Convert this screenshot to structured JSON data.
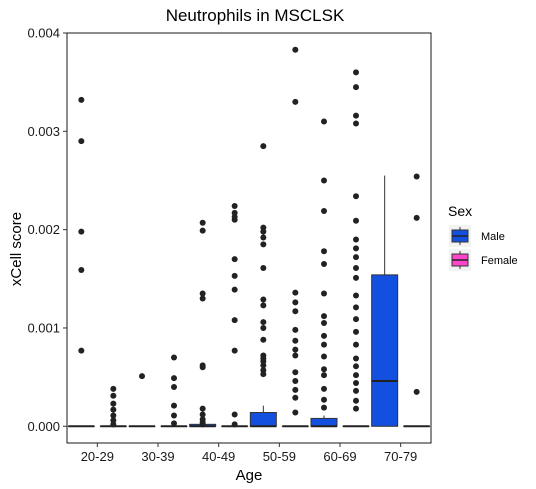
{
  "chart_data": {
    "type": "box",
    "title": "Neutrophils in MSCLSK",
    "xlabel": "Age",
    "ylabel": "xCell score",
    "categories": [
      "20-29",
      "30-39",
      "40-49",
      "50-59",
      "60-69",
      "70-79"
    ],
    "ylim": [
      -0.00017,
      0.004
    ],
    "yticks": [
      0,
      0.001,
      0.002,
      0.003,
      0.004
    ],
    "ytick_labels": [
      "0.000",
      "0.001",
      "0.002",
      "0.003",
      "0.004"
    ],
    "legend": {
      "title": "Sex",
      "position": "right",
      "entries": [
        {
          "name": "Male",
          "color": "#1450e0"
        },
        {
          "name": "Female",
          "color": "#ff44cc"
        }
      ]
    },
    "series": [
      {
        "name": "Male",
        "color": "#1450e0",
        "boxes": [
          {
            "category": "20-29",
            "q1": 0,
            "median": 0,
            "q3": 0,
            "whisker_low": 0,
            "whisker_high": 0,
            "outliers": [
              0.00332,
              0.0029,
              0.00198,
              0.00159,
              0.00077
            ]
          },
          {
            "category": "30-39",
            "q1": 0,
            "median": 0,
            "q3": 0,
            "whisker_low": 0,
            "whisker_high": 0,
            "outliers": [
              0.00051
            ]
          },
          {
            "category": "40-49",
            "q1": 0,
            "median": 0,
            "q3": 2e-05,
            "whisker_low": 0,
            "whisker_high": 4e-05,
            "outliers": [
              0.00207,
              0.00199,
              0.00135,
              0.0013,
              0.00062,
              0.0006,
              0.00018,
              0.00012,
              7e-05,
              4e-05,
              2e-05
            ]
          },
          {
            "category": "50-59",
            "q1": 0,
            "median": 0,
            "q3": 0.00014,
            "whisker_low": 0,
            "whisker_high": 0.00021,
            "outliers": [
              0.00285,
              0.00202,
              0.00198,
              0.00192,
              0.00185,
              0.00161,
              0.00129,
              0.00123,
              0.00106,
              0.001,
              0.00088,
              0.00072,
              0.00069,
              0.00066,
              0.00062,
              0.00057,
              0.00053
            ]
          },
          {
            "category": "60-69",
            "q1": 0,
            "median": 0,
            "q3": 8e-05,
            "whisker_low": 0,
            "whisker_high": 0.00011,
            "outliers": [
              0.0031,
              0.0025,
              0.00219,
              0.00178,
              0.00165,
              0.00135,
              0.00112,
              0.00105,
              0.00092,
              0.00083,
              0.00071,
              0.00058,
              0.00052,
              0.00038,
              0.00027,
              0.00019
            ]
          },
          {
            "category": "70-79",
            "q1": 0,
            "median": 0.00046,
            "q3": 0.00154,
            "whisker_low": 0,
            "whisker_high": 0.00255,
            "outliers": []
          }
        ]
      },
      {
        "name": "Female",
        "color": "#ff44cc",
        "boxes": [
          {
            "category": "20-29",
            "q1": 0,
            "median": 0,
            "q3": 0,
            "whisker_low": 0,
            "whisker_high": 0,
            "outliers": [
              0.00038,
              0.00031,
              0.00023,
              0.00017,
              0.00011,
              6e-05,
              2e-05
            ]
          },
          {
            "category": "30-39",
            "q1": 0,
            "median": 0,
            "q3": 0,
            "whisker_low": 0,
            "whisker_high": 0,
            "outliers": [
              0.0007,
              0.00049,
              0.0004,
              0.00021,
              0.00011,
              3e-05
            ]
          },
          {
            "category": "40-49",
            "q1": 0,
            "median": 0,
            "q3": 0,
            "whisker_low": 0,
            "whisker_high": 0,
            "outliers": [
              0.00224,
              0.00217,
              0.00213,
              0.0021,
              0.0017,
              0.00153,
              0.00139,
              0.00108,
              0.00077,
              0.00012,
              2e-05
            ]
          },
          {
            "category": "50-59",
            "q1": 0,
            "median": 0,
            "q3": 0,
            "whisker_low": 0,
            "whisker_high": 0,
            "outliers": [
              0.00383,
              0.0033,
              0.00136,
              0.00126,
              0.00117,
              0.00098,
              0.00087,
              0.00078,
              0.00072,
              0.00055,
              0.00046,
              0.00037,
              0.00029,
              0.00014
            ]
          },
          {
            "category": "60-69",
            "q1": 0,
            "median": 0,
            "q3": 0,
            "whisker_low": 0,
            "whisker_high": 0,
            "outliers": [
              0.0036,
              0.00345,
              0.00316,
              0.00308,
              0.00234,
              0.00209,
              0.0019,
              0.00181,
              0.00172,
              0.00161,
              0.00151,
              0.00133,
              0.00121,
              0.00109,
              0.00096,
              0.00083,
              0.00069,
              0.00061,
              0.00052,
              0.00044,
              0.00036,
              0.00026,
              0.00018
            ]
          },
          {
            "category": "70-79",
            "q1": 0,
            "median": 0,
            "q3": 0,
            "whisker_low": 0,
            "whisker_high": 0,
            "outliers": [
              0.00254,
              0.00212,
              0.00035
            ]
          }
        ]
      }
    ]
  }
}
